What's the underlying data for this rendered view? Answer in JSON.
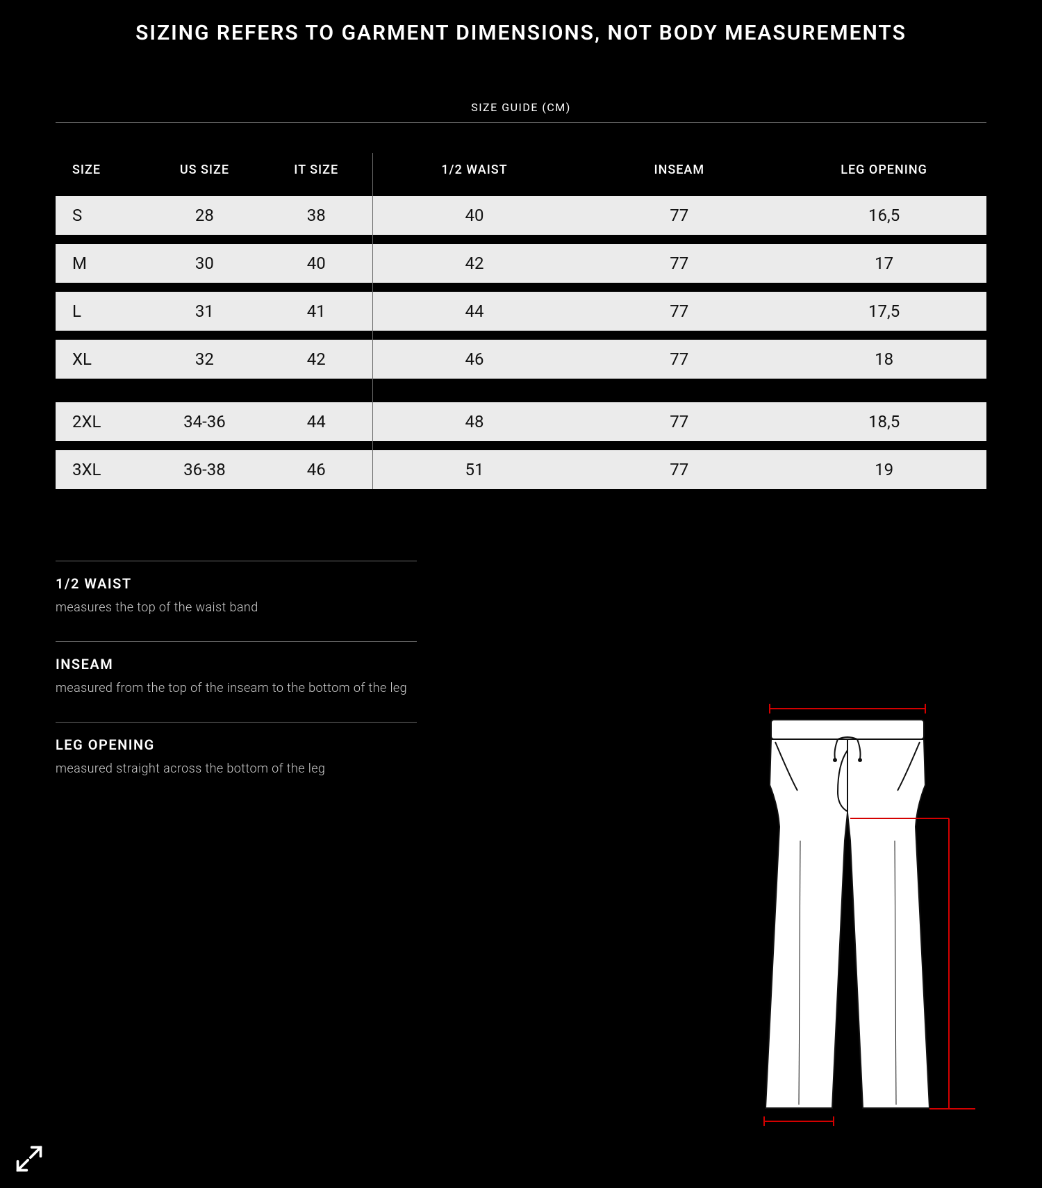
{
  "header": {
    "title": "SIZING REFERS TO GARMENT DIMENSIONS, NOT BODY MEASUREMENTS",
    "subtitle": "SIZE GUIDE (CM)"
  },
  "table": {
    "columns": [
      "SIZE",
      "US SIZE",
      "IT SIZE",
      "1/2 WAIST",
      "INSEAM",
      "LEG OPENING"
    ],
    "col_classes": [
      "col-size",
      "col-us",
      "col-it",
      "col-w",
      "col-ins",
      "col-lo"
    ],
    "rows": [
      [
        "S",
        "28",
        "38",
        "40",
        "77",
        "16,5"
      ],
      [
        "M",
        "30",
        "40",
        "42",
        "77",
        "17"
      ],
      [
        "L",
        "31",
        "41",
        "44",
        "77",
        "17,5"
      ],
      [
        "XL",
        "32",
        "42",
        "46",
        "77",
        "18"
      ],
      [
        "2XL",
        "34-36",
        "44",
        "48",
        "77",
        "18,5"
      ],
      [
        "3XL",
        "36-38",
        "46",
        "51",
        "77",
        "19"
      ]
    ],
    "header_bg": "#000000",
    "row_bg": "#ebebeb",
    "row_text": "#111111"
  },
  "descriptions": {
    "waist": {
      "title": "1/2 WAIST",
      "body": "measures the top of the waist band"
    },
    "inseam": {
      "title": "INSEAM",
      "body": "measured from the top of the inseam to the bottom of the leg"
    },
    "leg_opening": {
      "title": "LEG OPENING",
      "body": "measured straight across the bottom of the leg"
    }
  },
  "diagram": {
    "line_color": "#111111",
    "fill_color": "#ffffff",
    "marker_color": "#d40000"
  },
  "icons": {
    "expand": "expand-icon"
  }
}
